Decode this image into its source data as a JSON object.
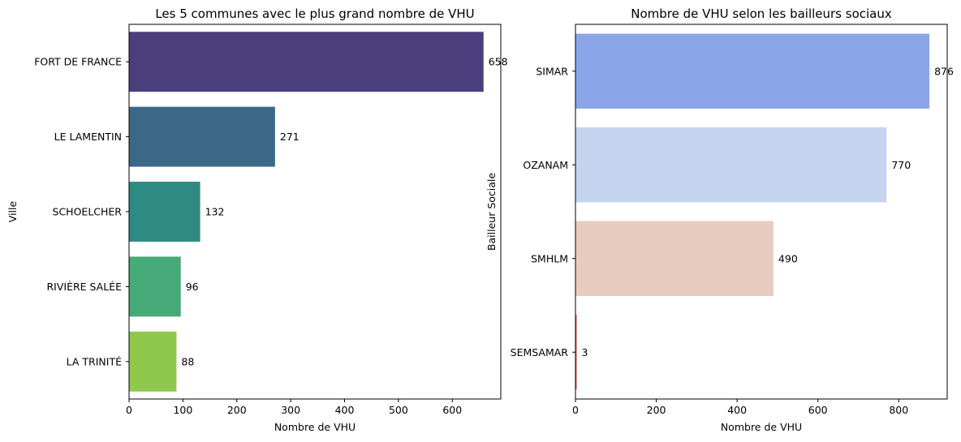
{
  "chart_data": [
    {
      "type": "bar",
      "orientation": "horizontal",
      "title": "Les 5 communes avec le plus grand nombre de VHU",
      "xlabel": "Nombre de VHU",
      "ylabel": "Ville",
      "categories": [
        "FORT DE FRANCE",
        "LE LAMENTIN",
        "SCHOELCHER",
        "RIVIÈRE SALÉE",
        "LA TRINITÉ"
      ],
      "values": [
        658,
        271,
        132,
        96,
        88
      ],
      "data_labels": [
        "658",
        "271",
        "132",
        "96",
        "88"
      ],
      "colors": [
        "#4a3f7c",
        "#3b6886",
        "#2e8a82",
        "#47aa78",
        "#90c84e"
      ],
      "xlim": [
        0,
        690
      ],
      "xticks": [
        0,
        100,
        200,
        300,
        400,
        500,
        600
      ],
      "xtick_labels": [
        "0",
        "100",
        "200",
        "300",
        "400",
        "500",
        "600"
      ],
      "grid": false
    },
    {
      "type": "bar",
      "orientation": "horizontal",
      "title": "Nombre de VHU selon les bailleurs sociaux",
      "xlabel": "Nombre de VHU",
      "ylabel": "Bailleur Sociale",
      "categories": [
        "SIMAR",
        "OZANAM",
        "SMHLM",
        "SEMSAMAR"
      ],
      "values": [
        876,
        770,
        490,
        3
      ],
      "data_labels": [
        "876",
        "770",
        "490",
        "3"
      ],
      "colors": [
        "#8aa6e9",
        "#c6d5ef",
        "#e8ccbf",
        "#d65f4c"
      ],
      "xlim": [
        0,
        920
      ],
      "xticks": [
        0,
        200,
        400,
        600,
        800
      ],
      "xtick_labels": [
        "0",
        "200",
        "400",
        "600",
        "800"
      ],
      "grid": false
    }
  ]
}
